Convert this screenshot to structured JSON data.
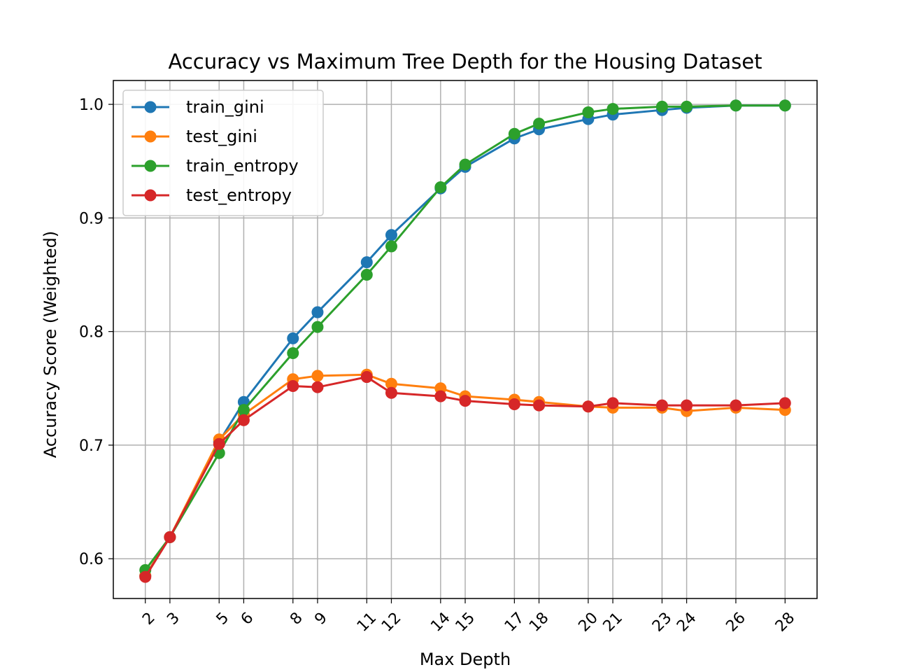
{
  "chart_data": {
    "type": "line",
    "title": "Accuracy vs Maximum Tree Depth for the Housing Dataset",
    "xlabel": "Max Depth",
    "ylabel": "Accuracy Score (Weighted)",
    "x": [
      2,
      3,
      5,
      6,
      8,
      9,
      11,
      12,
      14,
      15,
      17,
      18,
      20,
      21,
      23,
      24,
      26,
      28
    ],
    "x_tick_labels": [
      "2",
      "3",
      "5",
      "6",
      "8",
      "9",
      "11",
      "12",
      "14",
      "15",
      "17",
      "18",
      "20",
      "21",
      "23",
      "24",
      "26",
      "28"
    ],
    "xlim": [
      0.7,
      29.3
    ],
    "ylim": [
      0.565,
      1.021
    ],
    "y_ticks": [
      0.6,
      0.7,
      0.8,
      0.9,
      1.0
    ],
    "y_tick_labels": [
      "0.6",
      "0.7",
      "0.8",
      "0.9",
      "1.0"
    ],
    "grid": true,
    "legend_position": "upper-left",
    "series": [
      {
        "name": "train_gini",
        "color": "#1f77b4",
        "values": [
          0.585,
          0.619,
          0.703,
          0.738,
          0.794,
          0.817,
          0.861,
          0.885,
          0.926,
          0.945,
          0.97,
          0.978,
          0.987,
          0.991,
          0.995,
          0.997,
          0.999,
          0.999
        ]
      },
      {
        "name": "test_gini",
        "color": "#ff7f0e",
        "values": [
          0.585,
          0.619,
          0.705,
          0.727,
          0.758,
          0.761,
          0.762,
          0.754,
          0.75,
          0.743,
          0.74,
          0.738,
          0.734,
          0.733,
          0.733,
          0.73,
          0.733,
          0.731
        ]
      },
      {
        "name": "train_entropy",
        "color": "#2ca02c",
        "values": [
          0.59,
          0.619,
          0.693,
          0.731,
          0.781,
          0.804,
          0.85,
          0.875,
          0.927,
          0.947,
          0.974,
          0.983,
          0.993,
          0.996,
          0.998,
          0.998,
          0.999,
          0.999
        ]
      },
      {
        "name": "test_entropy",
        "color": "#d62728",
        "values": [
          0.584,
          0.619,
          0.701,
          0.722,
          0.752,
          0.751,
          0.76,
          0.746,
          0.743,
          0.739,
          0.736,
          0.735,
          0.734,
          0.737,
          0.735,
          0.735,
          0.735,
          0.737
        ]
      }
    ]
  }
}
